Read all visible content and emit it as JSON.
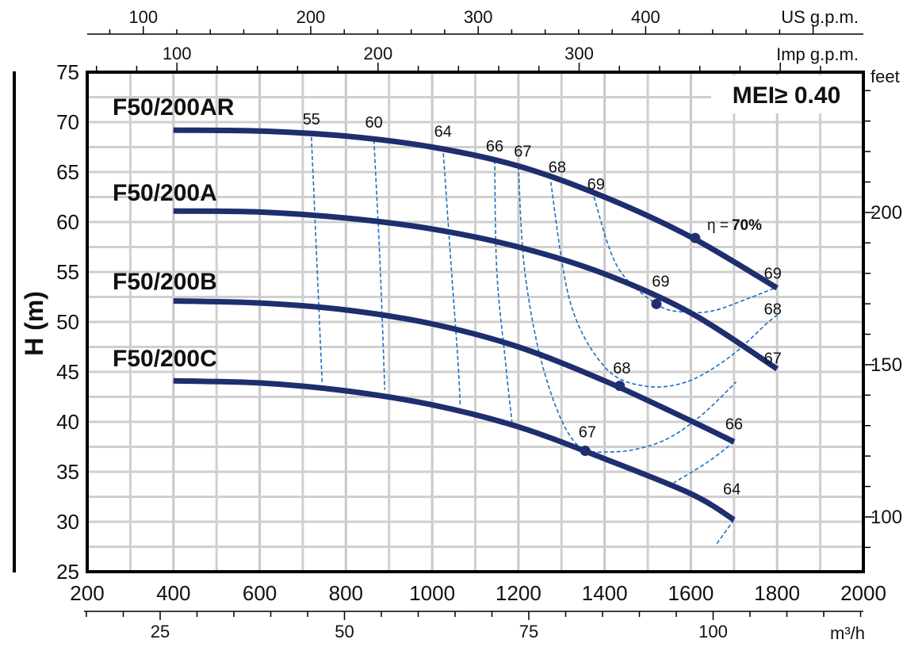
{
  "chart_data": {
    "type": "line",
    "ylabel": "H (m)",
    "y_right_label": "feet",
    "x_primary": {
      "ticks": [
        200,
        400,
        600,
        800,
        1000,
        1200,
        1400,
        1600,
        1800,
        2000
      ],
      "range": [
        200,
        2000
      ]
    },
    "y_primary": {
      "ticks": [
        25,
        30,
        35,
        40,
        45,
        50,
        55,
        60,
        65,
        70,
        75
      ],
      "range": [
        25,
        75
      ]
    },
    "axis_us_gpm": {
      "label": "US g.p.m.",
      "ticks": [
        100,
        200,
        300,
        400
      ]
    },
    "axis_imp_gpm": {
      "label": "Imp g.p.m.",
      "ticks": [
        100,
        200,
        300
      ]
    },
    "axis_m3h": {
      "label": "m³/h",
      "ticks": [
        25,
        50,
        75,
        100
      ]
    },
    "axis_feet": {
      "label": "feet",
      "ticks": [
        100,
        150,
        200
      ]
    },
    "badge": "MEI≥ 0.40",
    "eta_label": "η =",
    "eta_value": "70%",
    "series": [
      {
        "name": "F50/200AR",
        "x": [
          400,
          600,
          800,
          1000,
          1200,
          1400,
          1600,
          1800
        ],
        "y": [
          69.2,
          69.1,
          68.6,
          67.5,
          65.6,
          62.5,
          58.5,
          53.4
        ]
      },
      {
        "name": "F50/200A",
        "x": [
          400,
          600,
          800,
          1000,
          1200,
          1400,
          1600,
          1800
        ],
        "y": [
          61.1,
          61.0,
          60.4,
          59.3,
          57.5,
          54.8,
          50.9,
          45.3
        ]
      },
      {
        "name": "F50/200B",
        "x": [
          400,
          600,
          800,
          1000,
          1200,
          1400,
          1600,
          1700
        ],
        "y": [
          52.1,
          51.9,
          51.2,
          49.8,
          47.5,
          44.1,
          40.1,
          38.0
        ]
      },
      {
        "name": "F50/200C",
        "x": [
          400,
          600,
          800,
          1000,
          1200,
          1400,
          1600,
          1700
        ],
        "y": [
          44.1,
          43.9,
          43.1,
          41.7,
          39.5,
          36.3,
          32.8,
          30.2
        ]
      }
    ],
    "efficiency_contours": [
      {
        "label": "55",
        "x": [
          720,
          745
        ],
        "y": [
          68.5,
          43.8
        ]
      },
      {
        "label": "60",
        "x": [
          865,
          880,
          890
        ],
        "y": [
          68.2,
          55,
          43.2
        ]
      },
      {
        "label": "64",
        "x": [
          1025,
          1045,
          1060,
          1065
        ],
        "y": [
          67.5,
          55,
          46,
          41.6
        ]
      },
      {
        "label": "66",
        "x": [
          1145,
          1150,
          1170,
          1185
        ],
        "y": [
          66.2,
          55,
          46,
          40.0
        ]
      },
      {
        "label": "67",
        "x": [
          1200,
          1215,
          1260,
          1330,
          1420,
          1530,
          1620,
          1705
        ],
        "y": [
          65.6,
          55,
          45,
          38.0,
          37.0,
          38.0,
          40.5,
          44.0
        ]
      },
      {
        "label": "68",
        "x": [
          1275,
          1320,
          1400,
          1490,
          1590,
          1690,
          1780,
          1805
        ],
        "y": [
          64.0,
          52,
          45.5,
          43.6,
          44.0,
          46.5,
          50,
          50.8
        ]
      },
      {
        "label": "69",
        "x": [
          1375,
          1430,
          1520,
          1580,
          1650,
          1730,
          1795
        ],
        "y": [
          62.5,
          55.5,
          51.8,
          51.0,
          51.1,
          52.3,
          53.4
        ]
      },
      {
        "label": "66",
        "x": [
          1700,
          1640,
          1560
        ],
        "y": [
          38.0,
          36.0,
          33.9
        ]
      },
      {
        "label": "64",
        "x": [
          1700,
          1660
        ],
        "y": [
          30.2,
          27.8
        ]
      }
    ],
    "efficiency_labels": [
      {
        "text": "55",
        "x": 720,
        "y": 70.3
      },
      {
        "text": "60",
        "x": 865,
        "y": 70.0
      },
      {
        "text": "64",
        "x": 1025,
        "y": 69.1
      },
      {
        "text": "66",
        "x": 1145,
        "y": 67.6
      },
      {
        "text": "67",
        "x": 1210,
        "y": 67.1
      },
      {
        "text": "68",
        "x": 1290,
        "y": 65.5
      },
      {
        "text": "69",
        "x": 1380,
        "y": 63.8
      },
      {
        "text": "69",
        "x": 1790,
        "y": 54.9
      },
      {
        "text": "68",
        "x": 1790,
        "y": 51.3
      },
      {
        "text": "67",
        "x": 1790,
        "y": 46.4
      },
      {
        "text": "69",
        "x": 1530,
        "y": 54.1
      },
      {
        "text": "68",
        "x": 1440,
        "y": 45.4
      },
      {
        "text": "67",
        "x": 1360,
        "y": 39.0
      },
      {
        "text": "66",
        "x": 1700,
        "y": 39.8
      },
      {
        "text": "64",
        "x": 1695,
        "y": 33.3
      }
    ],
    "bep_points": [
      {
        "x": 1610,
        "y": 58.4
      },
      {
        "x": 1520,
        "y": 51.8
      },
      {
        "x": 1435,
        "y": 43.6
      },
      {
        "x": 1355,
        "y": 37.1
      }
    ]
  }
}
